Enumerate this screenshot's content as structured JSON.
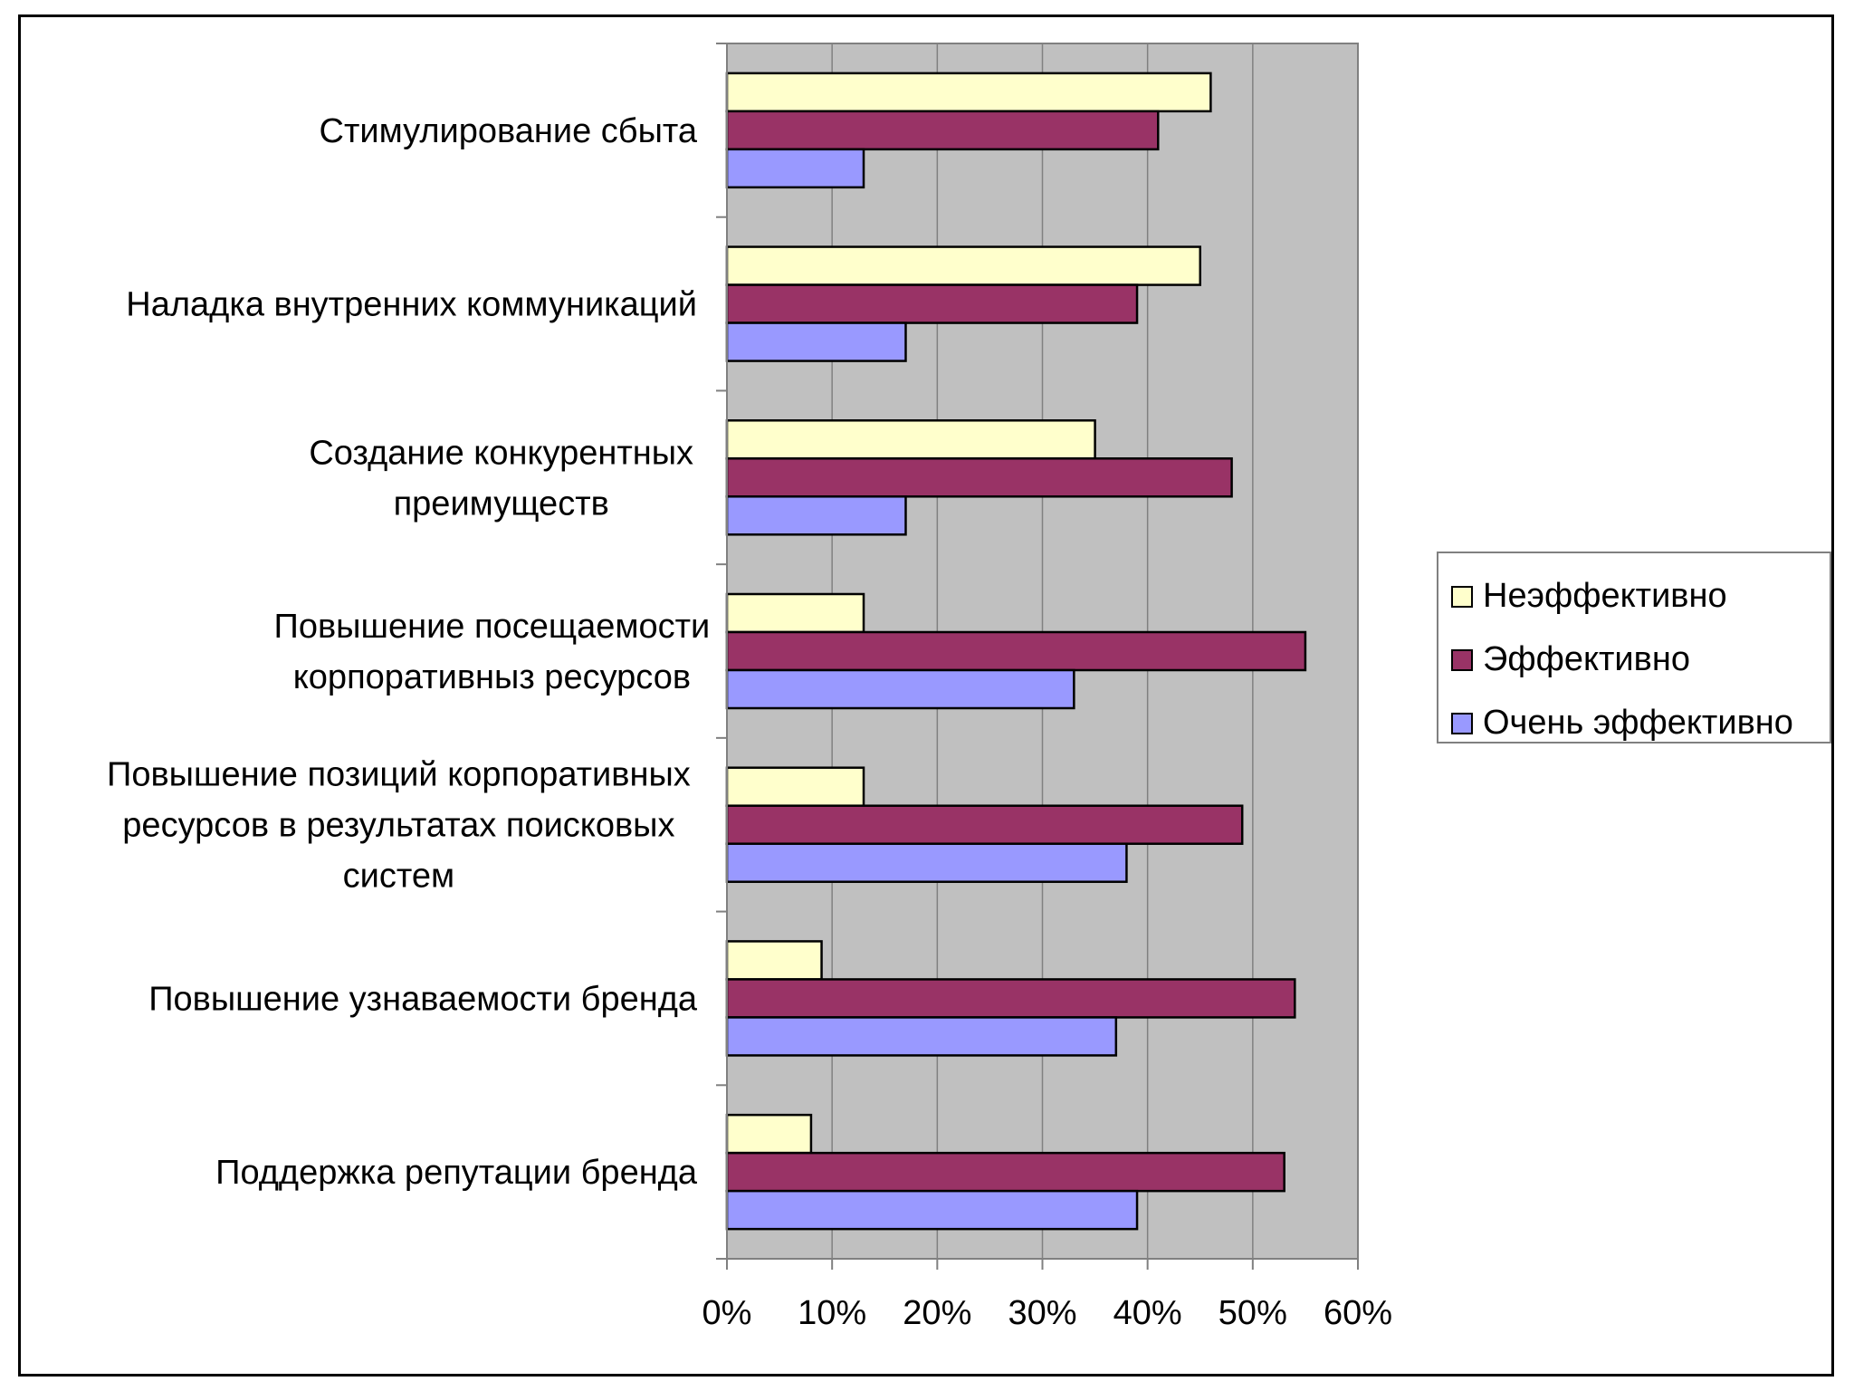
{
  "chart_data": {
    "type": "bar",
    "orientation": "horizontal",
    "categories": [
      [
        "Стимулирование сбыта"
      ],
      [
        "Наладка внутренних коммуникаций"
      ],
      [
        "Создание конкурентных",
        "преимуществ"
      ],
      [
        "Повышение посещаемости",
        "корпоративныз ресурсов"
      ],
      [
        "Повышение позиций корпоративных",
        "ресурсов в результатах поисковых",
        "систем"
      ],
      [
        "Повышение узнаваемости бренда"
      ],
      [
        "Поддержка репутации бренда"
      ]
    ],
    "series": [
      {
        "name": "Неэффективно",
        "color": "#FFFFCC",
        "values": [
          46,
          45,
          35,
          13,
          13,
          9,
          8
        ]
      },
      {
        "name": "Эффективно",
        "color": "#993366",
        "values": [
          41,
          39,
          48,
          55,
          49,
          54,
          53
        ]
      },
      {
        "name": "Очень эффективно",
        "color": "#9999FF",
        "values": [
          13,
          17,
          17,
          33,
          38,
          37,
          39
        ]
      }
    ],
    "xlim": [
      0,
      60
    ],
    "xticks": [
      "0%",
      "10%",
      "20%",
      "30%",
      "40%",
      "50%",
      "60%"
    ],
    "plot_background": "#C0C0C0",
    "grid": true,
    "legend_position": "right"
  }
}
